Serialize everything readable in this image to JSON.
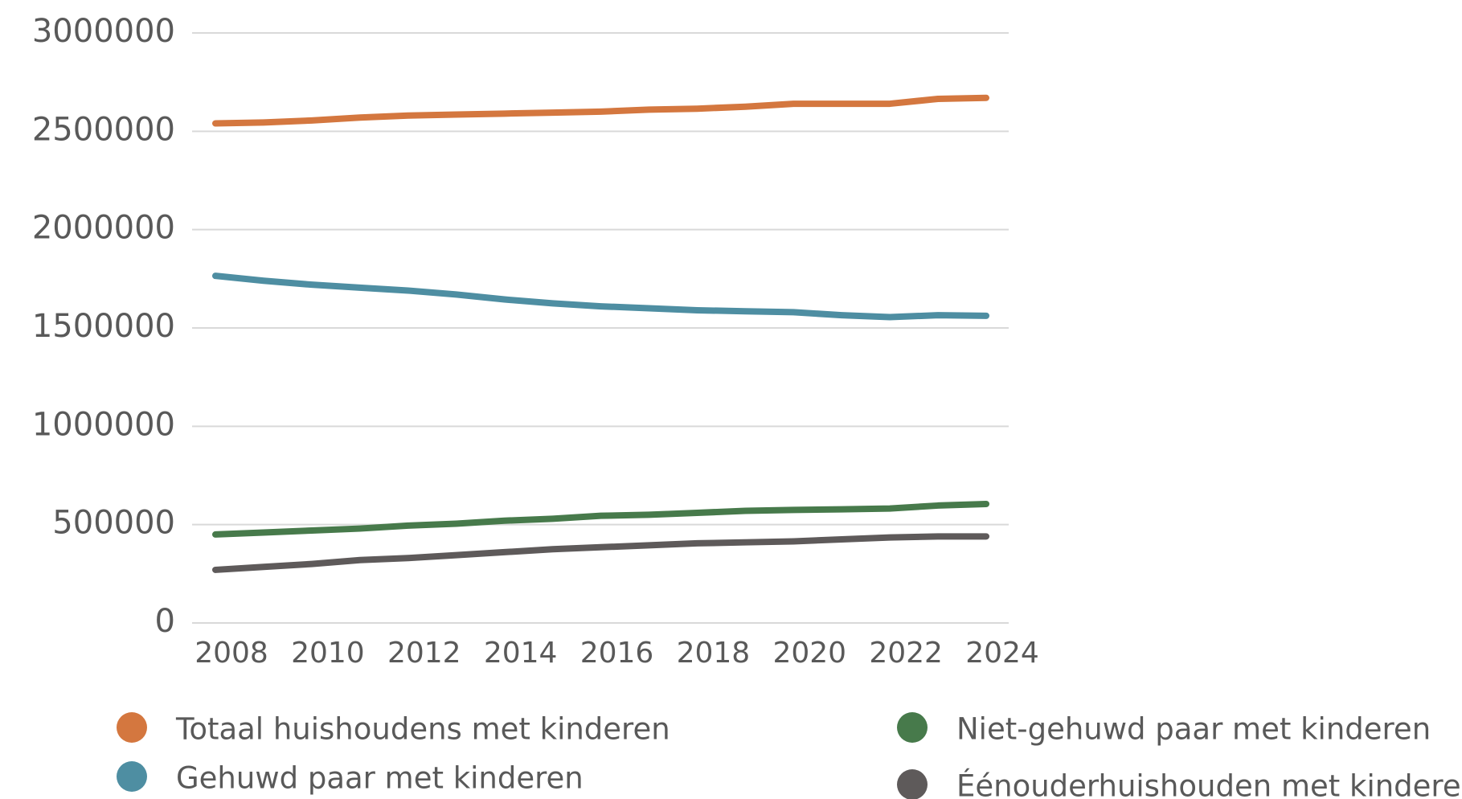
{
  "chart_data": {
    "type": "line",
    "categories": [
      "2008",
      null,
      "2010",
      null,
      "2012",
      null,
      "2014",
      null,
      "2016",
      null,
      "2018",
      null,
      "2020",
      null,
      "2022",
      null,
      "2024"
    ],
    "series": [
      {
        "name": "Totaal huishoudens met kinderen",
        "color": "#d4773f",
        "values": [
          2540000,
          2545000,
          2555000,
          2570000,
          2580000,
          2585000,
          2590000,
          2595000,
          2600000,
          2610000,
          2615000,
          2625000,
          2640000,
          2640000,
          2640000,
          2665000,
          2670000
        ]
      },
      {
        "name": "Gehuwd paar met kinderen",
        "color": "#4e8ea2",
        "values": [
          1765000,
          1740000,
          1720000,
          1705000,
          1690000,
          1670000,
          1645000,
          1625000,
          1610000,
          1600000,
          1590000,
          1585000,
          1580000,
          1565000,
          1555000,
          1565000,
          1562000
        ]
      },
      {
        "name": "Niet-gehuwd paar met kinderen",
        "color": "#477a4b",
        "values": [
          450000,
          460000,
          470000,
          480000,
          495000,
          505000,
          520000,
          530000,
          545000,
          550000,
          560000,
          570000,
          575000,
          578000,
          582000,
          597000,
          605000
        ]
      },
      {
        "name": "Éénouderhuishouden met kinderen",
        "color": "#5e5a5a",
        "values": [
          270000,
          285000,
          300000,
          320000,
          330000,
          345000,
          360000,
          375000,
          385000,
          395000,
          405000,
          410000,
          415000,
          425000,
          435000,
          440000,
          440000
        ]
      }
    ],
    "ylim": [
      0,
      3000000
    ],
    "yticks": [
      0,
      500000,
      1000000,
      1500000,
      2000000,
      2500000,
      3000000
    ],
    "grid": true
  }
}
